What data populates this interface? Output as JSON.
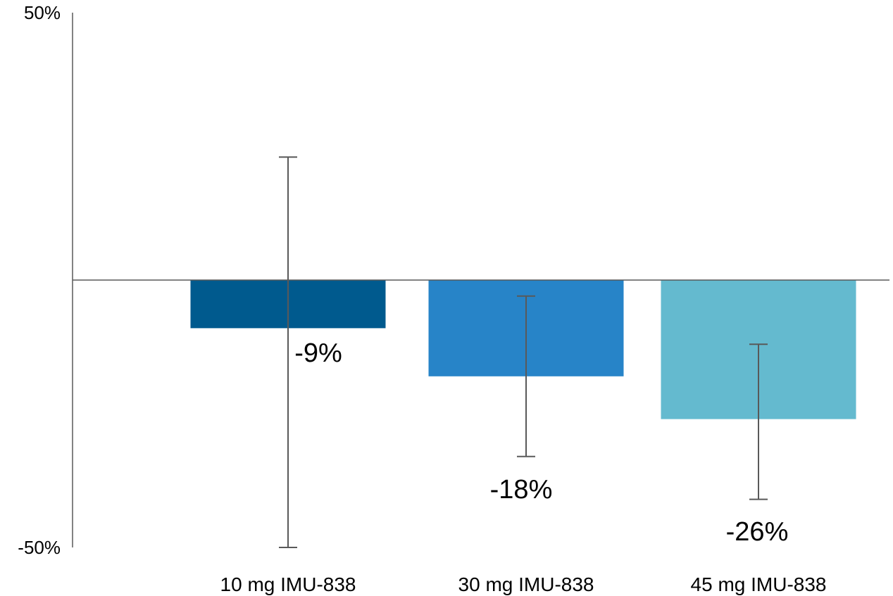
{
  "chart_data": {
    "type": "bar",
    "title": "",
    "xlabel": "",
    "ylabel": "",
    "categories": [
      "10 mg IMU-838",
      "30 mg IMU-838",
      "45 mg IMU-838"
    ],
    "values": [
      -9,
      -18,
      -26
    ],
    "value_labels": [
      "-9%",
      "-18%",
      "-26%"
    ],
    "error_bars": [
      {
        "low": -50,
        "high": 23
      },
      {
        "low": -33,
        "high": -3
      },
      {
        "low": -41,
        "high": -12
      }
    ],
    "ylim": [
      -50,
      50
    ],
    "y_ticks": [
      {
        "value": 50,
        "label": "50%"
      },
      {
        "value": -50,
        "label": "-50%"
      }
    ],
    "grid": false,
    "legend": "none",
    "colors": [
      "#005A8E",
      "#2784C8",
      "#64BACF"
    ]
  }
}
